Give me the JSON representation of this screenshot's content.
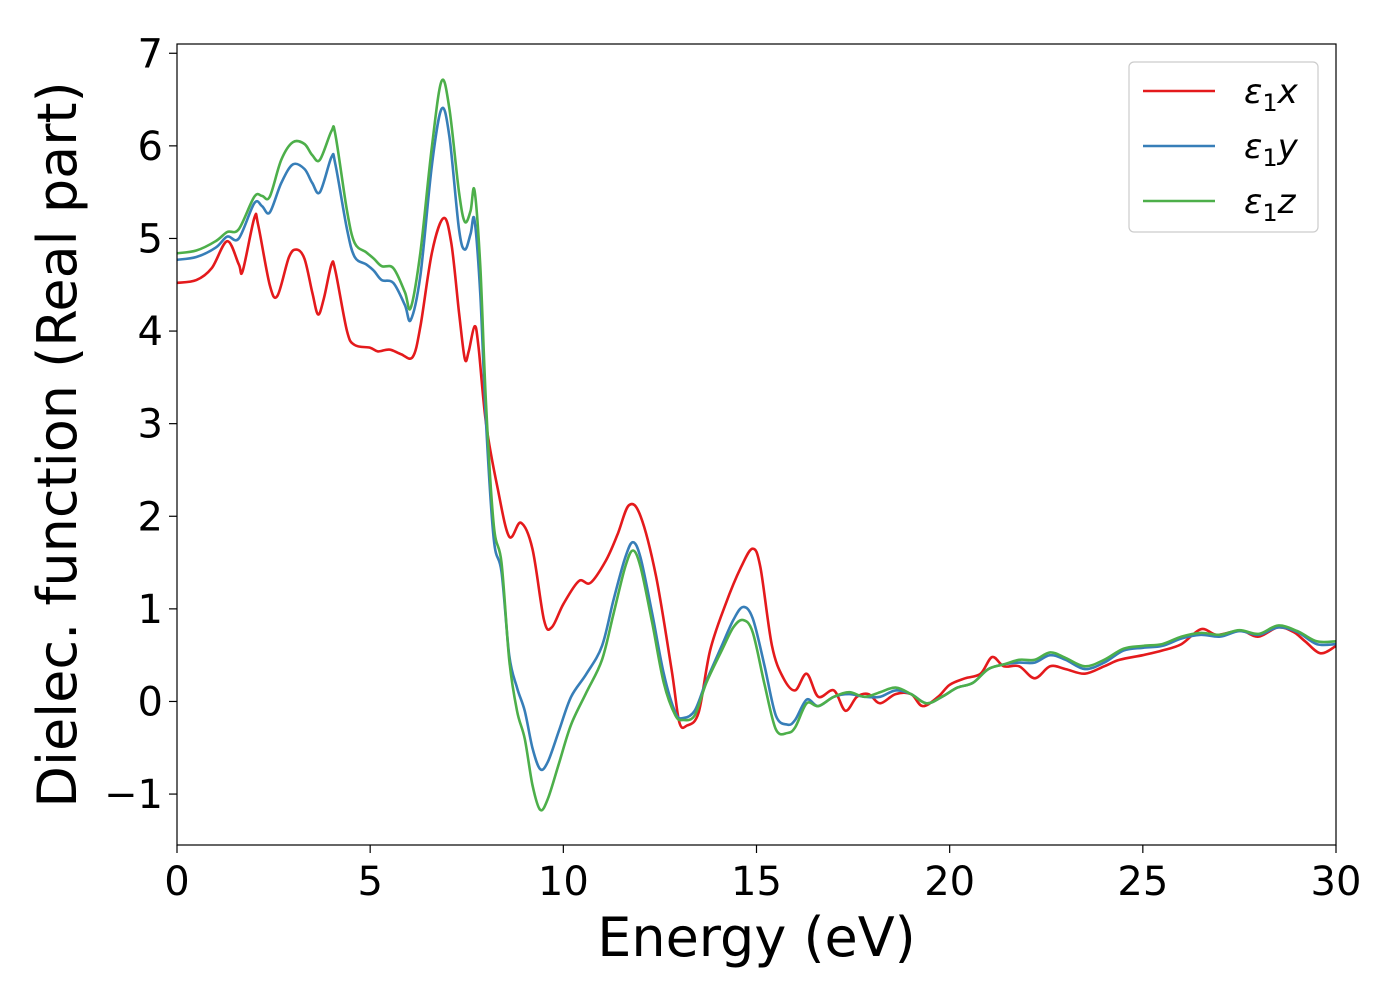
{
  "chart_data": {
    "type": "line",
    "title": "",
    "xlabel": "Energy (eV)",
    "ylabel": "Dielec. function (Real part)",
    "xlim": [
      0,
      30
    ],
    "ylim": [
      -1.55,
      7.1
    ],
    "xticks": [
      0,
      5,
      10,
      15,
      20,
      25,
      30
    ],
    "xtick_labels": [
      "0",
      "5",
      "10",
      "15",
      "20",
      "25",
      "30"
    ],
    "yticks": [
      -1,
      0,
      1,
      2,
      3,
      4,
      5,
      6,
      7
    ],
    "ytick_labels": [
      "−1",
      "0",
      "1",
      "2",
      "3",
      "4",
      "5",
      "6",
      "7"
    ],
    "grid": false,
    "legend_position": "top-right",
    "series": [
      {
        "name": "ε₁x",
        "label_base": "ε",
        "label_sub": "1",
        "label_suffix": "x",
        "color": "#e41a1c",
        "points": [
          [
            0,
            4.52
          ],
          [
            0.5,
            4.55
          ],
          [
            0.9,
            4.68
          ],
          [
            1.3,
            4.97
          ],
          [
            1.6,
            4.72
          ],
          [
            1.7,
            4.65
          ],
          [
            2.0,
            5.22
          ],
          [
            2.1,
            5.15
          ],
          [
            2.4,
            4.5
          ],
          [
            2.6,
            4.38
          ],
          [
            2.9,
            4.8
          ],
          [
            3.1,
            4.88
          ],
          [
            3.3,
            4.78
          ],
          [
            3.5,
            4.42
          ],
          [
            3.65,
            4.18
          ],
          [
            3.8,
            4.35
          ],
          [
            4.0,
            4.72
          ],
          [
            4.1,
            4.65
          ],
          [
            4.4,
            4.0
          ],
          [
            4.6,
            3.85
          ],
          [
            5.0,
            3.82
          ],
          [
            5.2,
            3.78
          ],
          [
            5.5,
            3.8
          ],
          [
            5.8,
            3.75
          ],
          [
            6.1,
            3.72
          ],
          [
            6.3,
            4.05
          ],
          [
            6.6,
            4.85
          ],
          [
            6.9,
            5.22
          ],
          [
            7.1,
            4.95
          ],
          [
            7.3,
            4.2
          ],
          [
            7.45,
            3.7
          ],
          [
            7.55,
            3.78
          ],
          [
            7.7,
            4.05
          ],
          [
            7.8,
            3.85
          ],
          [
            8.0,
            3.0
          ],
          [
            8.3,
            2.3
          ],
          [
            8.6,
            1.78
          ],
          [
            8.9,
            1.93
          ],
          [
            9.2,
            1.65
          ],
          [
            9.5,
            0.88
          ],
          [
            9.7,
            0.8
          ],
          [
            10.0,
            1.05
          ],
          [
            10.4,
            1.3
          ],
          [
            10.7,
            1.28
          ],
          [
            11.1,
            1.52
          ],
          [
            11.4,
            1.8
          ],
          [
            11.7,
            2.12
          ],
          [
            12.0,
            2.0
          ],
          [
            12.4,
            1.35
          ],
          [
            12.8,
            0.35
          ],
          [
            13.0,
            -0.22
          ],
          [
            13.2,
            -0.26
          ],
          [
            13.5,
            -0.12
          ],
          [
            13.8,
            0.55
          ],
          [
            14.2,
            1.05
          ],
          [
            14.6,
            1.45
          ],
          [
            14.9,
            1.65
          ],
          [
            15.1,
            1.45
          ],
          [
            15.4,
            0.6
          ],
          [
            15.7,
            0.25
          ],
          [
            16.0,
            0.12
          ],
          [
            16.3,
            0.3
          ],
          [
            16.6,
            0.05
          ],
          [
            17.0,
            0.12
          ],
          [
            17.3,
            -0.1
          ],
          [
            17.6,
            0.05
          ],
          [
            17.9,
            0.08
          ],
          [
            18.2,
            -0.02
          ],
          [
            18.6,
            0.08
          ],
          [
            19.0,
            0.08
          ],
          [
            19.3,
            -0.05
          ],
          [
            19.7,
            0.05
          ],
          [
            20.0,
            0.18
          ],
          [
            20.4,
            0.25
          ],
          [
            20.8,
            0.3
          ],
          [
            21.1,
            0.48
          ],
          [
            21.4,
            0.38
          ],
          [
            21.8,
            0.38
          ],
          [
            22.2,
            0.25
          ],
          [
            22.6,
            0.38
          ],
          [
            23.0,
            0.35
          ],
          [
            23.5,
            0.3
          ],
          [
            24.0,
            0.38
          ],
          [
            24.4,
            0.45
          ],
          [
            25.0,
            0.5
          ],
          [
            25.5,
            0.55
          ],
          [
            26.0,
            0.62
          ],
          [
            26.5,
            0.78
          ],
          [
            26.9,
            0.72
          ],
          [
            27.3,
            0.75
          ],
          [
            27.6,
            0.76
          ],
          [
            28.0,
            0.7
          ],
          [
            28.5,
            0.8
          ],
          [
            28.9,
            0.75
          ],
          [
            29.2,
            0.65
          ],
          [
            29.6,
            0.52
          ],
          [
            30.0,
            0.6
          ]
        ]
      },
      {
        "name": "ε₁y",
        "label_base": "ε",
        "label_sub": "1",
        "label_suffix": "y",
        "color": "#377eb8",
        "points": [
          [
            0,
            4.77
          ],
          [
            0.5,
            4.8
          ],
          [
            1.0,
            4.9
          ],
          [
            1.3,
            5.02
          ],
          [
            1.6,
            5.0
          ],
          [
            2.0,
            5.38
          ],
          [
            2.2,
            5.35
          ],
          [
            2.4,
            5.28
          ],
          [
            2.7,
            5.6
          ],
          [
            3.0,
            5.8
          ],
          [
            3.3,
            5.75
          ],
          [
            3.5,
            5.6
          ],
          [
            3.7,
            5.5
          ],
          [
            4.0,
            5.88
          ],
          [
            4.1,
            5.8
          ],
          [
            4.4,
            5.1
          ],
          [
            4.6,
            4.8
          ],
          [
            4.9,
            4.72
          ],
          [
            5.1,
            4.65
          ],
          [
            5.3,
            4.55
          ],
          [
            5.6,
            4.52
          ],
          [
            5.9,
            4.28
          ],
          [
            6.05,
            4.12
          ],
          [
            6.3,
            4.6
          ],
          [
            6.6,
            5.8
          ],
          [
            6.85,
            6.4
          ],
          [
            7.05,
            6.1
          ],
          [
            7.3,
            5.1
          ],
          [
            7.45,
            4.88
          ],
          [
            7.6,
            5.05
          ],
          [
            7.7,
            5.2
          ],
          [
            7.85,
            4.4
          ],
          [
            8.0,
            3.0
          ],
          [
            8.2,
            1.75
          ],
          [
            8.4,
            1.4
          ],
          [
            8.6,
            0.5
          ],
          [
            8.8,
            0.15
          ],
          [
            9.0,
            -0.1
          ],
          [
            9.2,
            -0.5
          ],
          [
            9.4,
            -0.73
          ],
          [
            9.6,
            -0.65
          ],
          [
            9.9,
            -0.3
          ],
          [
            10.2,
            0.05
          ],
          [
            10.6,
            0.3
          ],
          [
            11.0,
            0.6
          ],
          [
            11.3,
            1.1
          ],
          [
            11.6,
            1.55
          ],
          [
            11.8,
            1.72
          ],
          [
            12.0,
            1.55
          ],
          [
            12.3,
            0.95
          ],
          [
            12.6,
            0.3
          ],
          [
            12.9,
            -0.12
          ],
          [
            13.1,
            -0.18
          ],
          [
            13.4,
            -0.1
          ],
          [
            13.7,
            0.22
          ],
          [
            14.1,
            0.6
          ],
          [
            14.4,
            0.88
          ],
          [
            14.65,
            1.02
          ],
          [
            14.9,
            0.9
          ],
          [
            15.2,
            0.4
          ],
          [
            15.5,
            -0.15
          ],
          [
            15.8,
            -0.25
          ],
          [
            16.0,
            -0.2
          ],
          [
            16.3,
            0.02
          ],
          [
            16.6,
            -0.05
          ],
          [
            17.0,
            0.05
          ],
          [
            17.4,
            0.08
          ],
          [
            17.8,
            0.05
          ],
          [
            18.2,
            0.05
          ],
          [
            18.6,
            0.12
          ],
          [
            19.0,
            0.08
          ],
          [
            19.4,
            -0.02
          ],
          [
            19.8,
            0.05
          ],
          [
            20.2,
            0.15
          ],
          [
            20.6,
            0.2
          ],
          [
            21.0,
            0.35
          ],
          [
            21.4,
            0.4
          ],
          [
            21.8,
            0.42
          ],
          [
            22.2,
            0.42
          ],
          [
            22.6,
            0.5
          ],
          [
            23.0,
            0.45
          ],
          [
            23.5,
            0.35
          ],
          [
            24.0,
            0.42
          ],
          [
            24.5,
            0.55
          ],
          [
            25.0,
            0.58
          ],
          [
            25.5,
            0.6
          ],
          [
            26.0,
            0.68
          ],
          [
            26.5,
            0.72
          ],
          [
            27.0,
            0.7
          ],
          [
            27.5,
            0.76
          ],
          [
            28.0,
            0.72
          ],
          [
            28.5,
            0.8
          ],
          [
            29.0,
            0.75
          ],
          [
            29.5,
            0.62
          ],
          [
            30.0,
            0.62
          ]
        ]
      },
      {
        "name": "ε₁z",
        "label_base": "ε",
        "label_sub": "1",
        "label_suffix": "z",
        "color": "#4daf4a",
        "points": [
          [
            0,
            4.84
          ],
          [
            0.5,
            4.87
          ],
          [
            1.0,
            4.97
          ],
          [
            1.3,
            5.07
          ],
          [
            1.6,
            5.1
          ],
          [
            2.0,
            5.45
          ],
          [
            2.2,
            5.46
          ],
          [
            2.4,
            5.45
          ],
          [
            2.7,
            5.85
          ],
          [
            3.0,
            6.04
          ],
          [
            3.3,
            6.02
          ],
          [
            3.5,
            5.9
          ],
          [
            3.7,
            5.85
          ],
          [
            4.0,
            6.16
          ],
          [
            4.1,
            6.12
          ],
          [
            4.4,
            5.3
          ],
          [
            4.6,
            4.95
          ],
          [
            4.9,
            4.85
          ],
          [
            5.1,
            4.78
          ],
          [
            5.3,
            4.7
          ],
          [
            5.6,
            4.68
          ],
          [
            5.9,
            4.42
          ],
          [
            6.05,
            4.25
          ],
          [
            6.3,
            4.85
          ],
          [
            6.6,
            6.0
          ],
          [
            6.85,
            6.7
          ],
          [
            7.05,
            6.4
          ],
          [
            7.3,
            5.5
          ],
          [
            7.45,
            5.18
          ],
          [
            7.6,
            5.3
          ],
          [
            7.7,
            5.52
          ],
          [
            7.85,
            4.7
          ],
          [
            8.0,
            3.2
          ],
          [
            8.2,
            1.9
          ],
          [
            8.4,
            1.5
          ],
          [
            8.6,
            0.45
          ],
          [
            8.8,
            -0.1
          ],
          [
            9.0,
            -0.4
          ],
          [
            9.2,
            -0.9
          ],
          [
            9.4,
            -1.17
          ],
          [
            9.6,
            -1.05
          ],
          [
            9.9,
            -0.65
          ],
          [
            10.2,
            -0.25
          ],
          [
            10.6,
            0.1
          ],
          [
            11.0,
            0.45
          ],
          [
            11.3,
            0.95
          ],
          [
            11.6,
            1.45
          ],
          [
            11.8,
            1.63
          ],
          [
            12.0,
            1.45
          ],
          [
            12.3,
            0.85
          ],
          [
            12.6,
            0.2
          ],
          [
            12.9,
            -0.15
          ],
          [
            13.1,
            -0.2
          ],
          [
            13.4,
            -0.15
          ],
          [
            13.7,
            0.2
          ],
          [
            14.1,
            0.55
          ],
          [
            14.4,
            0.8
          ],
          [
            14.65,
            0.88
          ],
          [
            14.9,
            0.75
          ],
          [
            15.2,
            0.2
          ],
          [
            15.5,
            -0.3
          ],
          [
            15.8,
            -0.34
          ],
          [
            16.0,
            -0.28
          ],
          [
            16.3,
            -0.02
          ],
          [
            16.6,
            -0.05
          ],
          [
            17.0,
            0.05
          ],
          [
            17.4,
            0.1
          ],
          [
            17.8,
            0.05
          ],
          [
            18.2,
            0.1
          ],
          [
            18.6,
            0.15
          ],
          [
            19.0,
            0.08
          ],
          [
            19.4,
            -0.02
          ],
          [
            19.8,
            0.05
          ],
          [
            20.2,
            0.15
          ],
          [
            20.6,
            0.2
          ],
          [
            21.0,
            0.35
          ],
          [
            21.4,
            0.4
          ],
          [
            21.8,
            0.45
          ],
          [
            22.2,
            0.45
          ],
          [
            22.6,
            0.53
          ],
          [
            23.0,
            0.47
          ],
          [
            23.5,
            0.38
          ],
          [
            24.0,
            0.45
          ],
          [
            24.5,
            0.57
          ],
          [
            25.0,
            0.6
          ],
          [
            25.5,
            0.62
          ],
          [
            26.0,
            0.7
          ],
          [
            26.5,
            0.74
          ],
          [
            27.0,
            0.72
          ],
          [
            27.5,
            0.77
          ],
          [
            28.0,
            0.73
          ],
          [
            28.5,
            0.82
          ],
          [
            29.0,
            0.76
          ],
          [
            29.5,
            0.65
          ],
          [
            30.0,
            0.65
          ]
        ]
      }
    ]
  }
}
